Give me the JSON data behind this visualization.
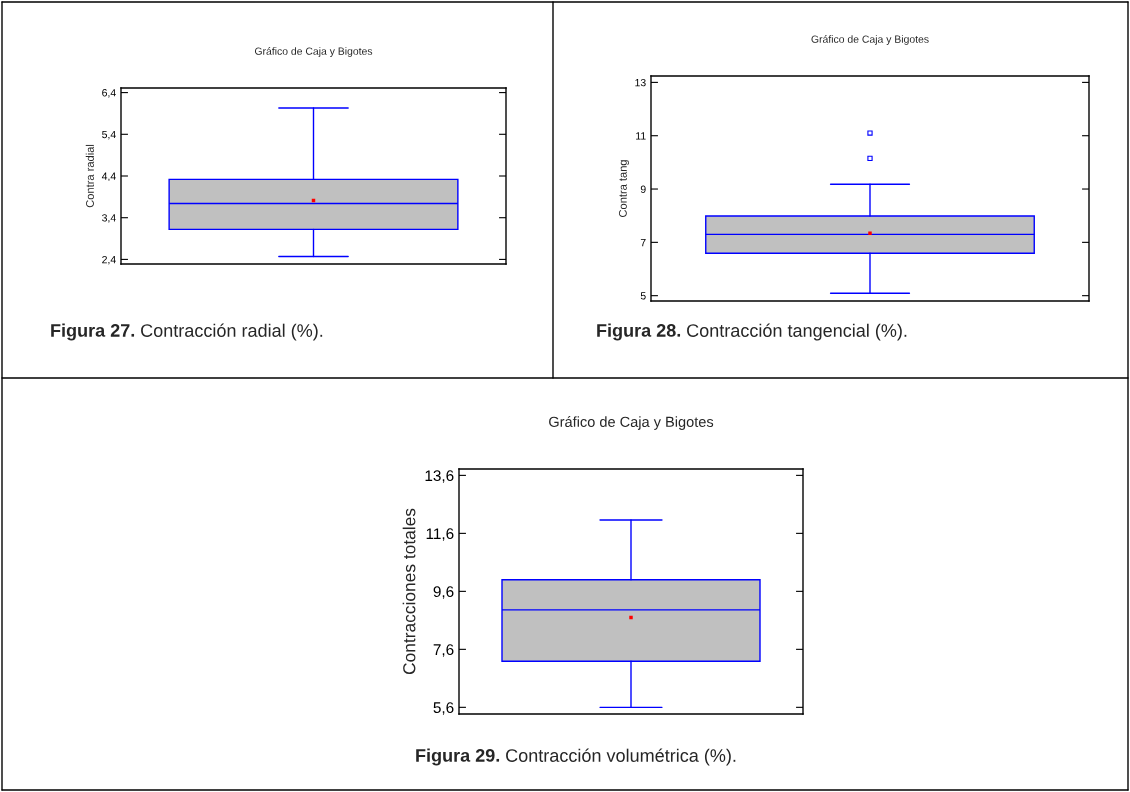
{
  "chart_data": [
    {
      "type": "box",
      "title": "Gráfico de Caja y Bigotes",
      "ylabel": "Contra radial",
      "categories": [
        null
      ],
      "tick_labels": "y",
      "grid": false,
      "color": "#c0c0c0",
      "boxes": [
        {
          "low": 2.47,
          "q1": 3.12,
          "median": 3.74,
          "q3": 4.32,
          "high": 6.03,
          "mean": 3.81
        }
      ],
      "ylim": [
        2.29,
        6.51
      ],
      "yticks": [
        {
          "value": 2.4,
          "label": "2,4"
        },
        {
          "value": 3.4,
          "label": "3,4"
        },
        {
          "value": 4.4,
          "label": "4,4"
        },
        {
          "value": 5.4,
          "label": "5,4"
        },
        {
          "value": 6.4,
          "label": "6,4"
        }
      ],
      "annotations": [
        "Figura 27. Contracción radial (%)."
      ]
    },
    {
      "type": "box",
      "title": "Gráfico de Caja y Bigotes",
      "ylabel": "Contra tang",
      "categories": [
        null
      ],
      "tick_labels": "y",
      "grid": false,
      "color": "#c0c0c0",
      "boxes": [
        {
          "low": 5.09,
          "q1": 6.59,
          "median": 7.3,
          "q3": 7.99,
          "high": 9.18,
          "mean": 7.34,
          "outliers": [
            10.15,
            11.1
          ]
        }
      ],
      "ylim": [
        4.8,
        13.24
      ],
      "yticks": [
        5,
        7,
        9,
        11,
        13
      ],
      "annotations": [
        "Figura 28. Contracción tangencial (%)."
      ]
    },
    {
      "type": "box",
      "title": "Gráfico de Caja y Bigotes",
      "ylabel": "Contracciones totales",
      "categories": [
        null
      ],
      "tick_labels": "y",
      "grid": false,
      "color": "#c0c0c0",
      "boxes": [
        {
          "low": 5.6,
          "q1": 7.19,
          "median": 8.96,
          "q3": 10.0,
          "high": 12.06,
          "mean": 8.7
        }
      ],
      "ylim": [
        5.37,
        13.82
      ],
      "yticks": [
        {
          "value": 5.6,
          "label": "5,6"
        },
        {
          "value": 7.6,
          "label": "7,6"
        },
        {
          "value": 9.6,
          "label": "9,6"
        },
        {
          "value": 11.6,
          "label": "11,6"
        },
        {
          "value": 13.6,
          "label": "13,6"
        }
      ],
      "annotations": [
        "Figura 29. Contracción volumétrica (%)."
      ]
    }
  ]
}
